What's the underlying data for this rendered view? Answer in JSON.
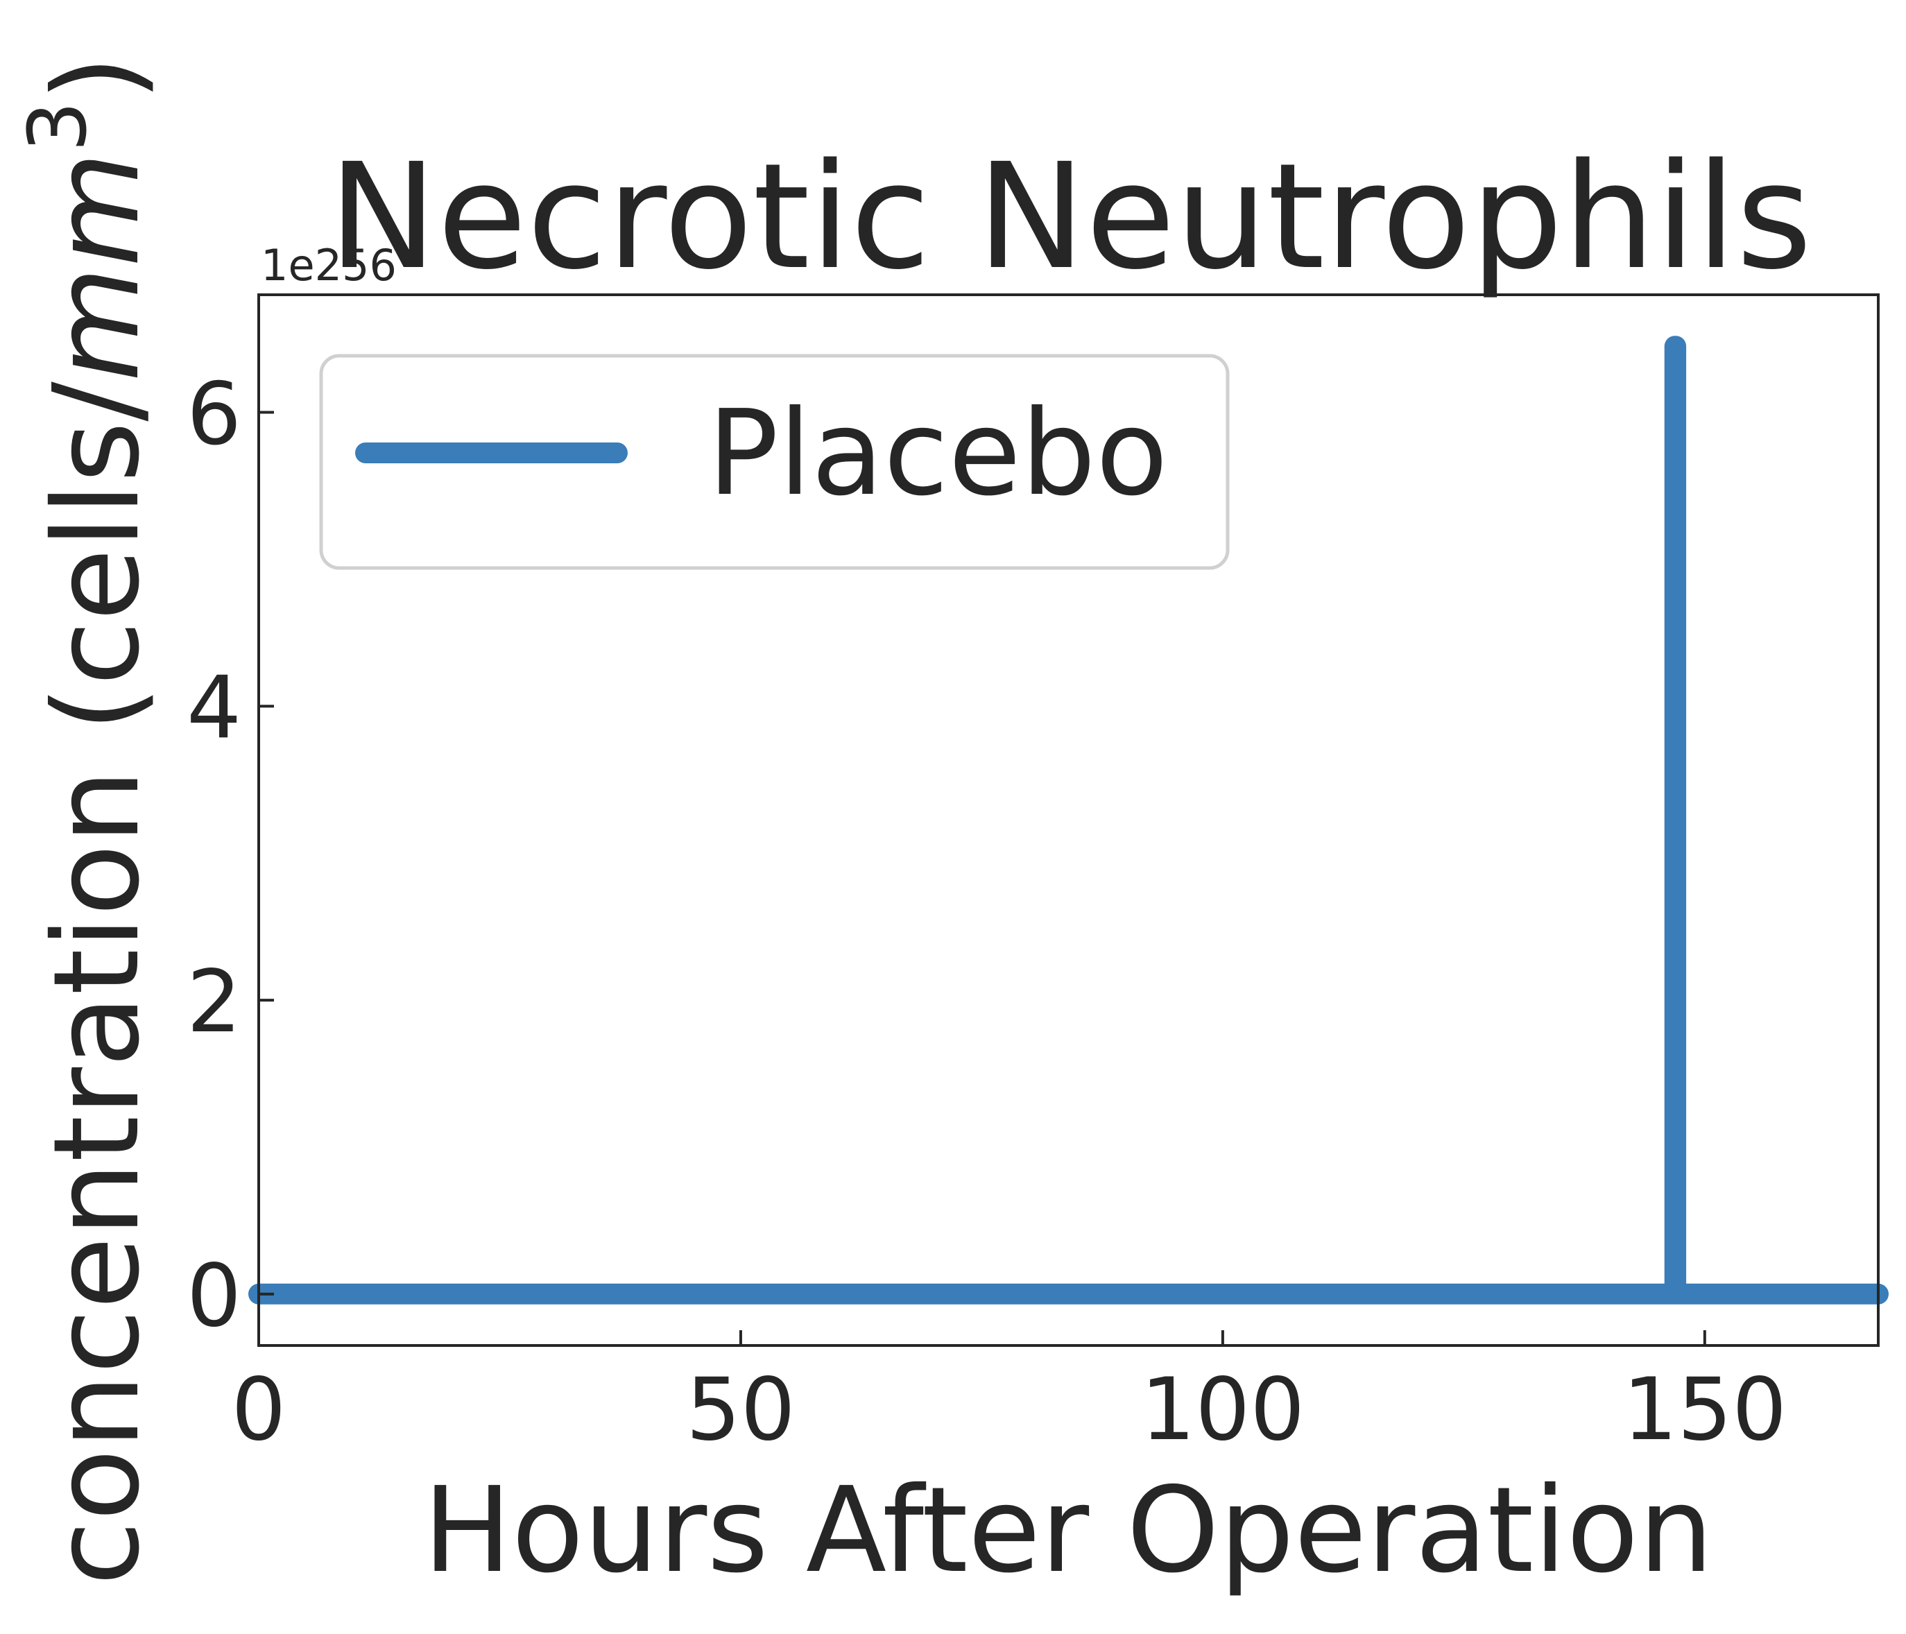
{
  "chart_data": {
    "type": "line",
    "title": "Necrotic Neutrophils",
    "xlabel": "Hours After Operation",
    "ylabel_main": "concentration (cells/",
    "ylabel_italic": "mm",
    "ylabel_sup": "3",
    "ylabel_close": ")",
    "y_offset_text": "1e256",
    "xlim": [
      0,
      168
    ],
    "ylim": [
      -0.35,
      6.8
    ],
    "y_scale_multiplier": "1e256",
    "x_ticks": [
      0,
      50,
      100,
      150
    ],
    "x_tick_labels": [
      "0",
      "50",
      "100",
      "150"
    ],
    "y_ticks": [
      0,
      2,
      4,
      6
    ],
    "y_tick_labels": [
      "0",
      "2",
      "4",
      "6"
    ],
    "grid": false,
    "legend_position": "upper-left",
    "series": [
      {
        "name": "Placebo",
        "color": "#3a7db8",
        "x": [
          0,
          146.9,
          146.9,
          147.0,
          147.0,
          168
        ],
        "y": [
          0,
          0,
          6.45,
          6.45,
          0,
          0
        ]
      }
    ]
  }
}
